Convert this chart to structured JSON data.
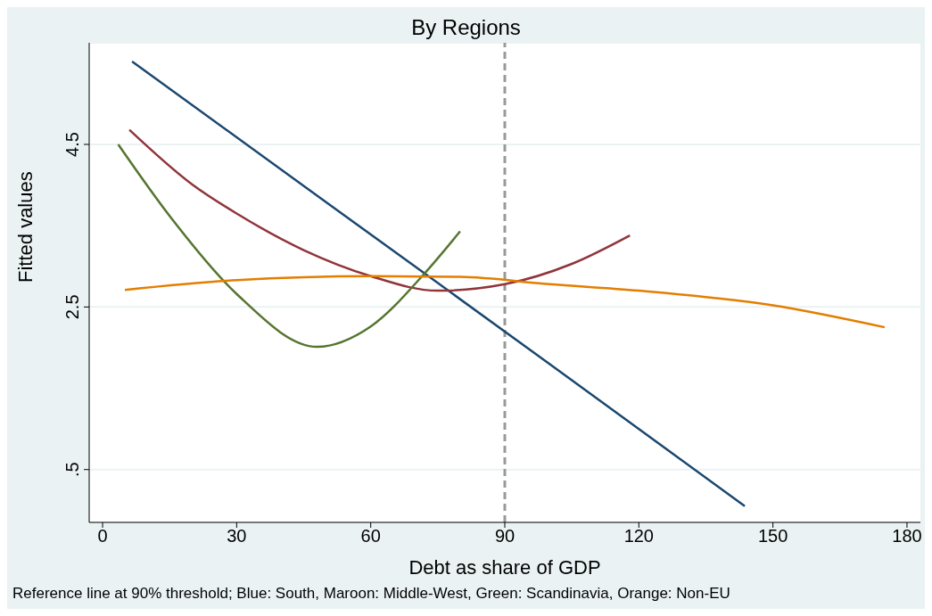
{
  "chart_data": {
    "type": "line",
    "title": "By Regions",
    "xlabel": "Debt as share of GDP",
    "ylabel": "Fitted values",
    "annotations": [
      "Reference line at 90% threshold; Blue: South, Maroon: Middle-West, Green: Scandinavia, Orange: Non-EU"
    ],
    "xlim": [
      -3,
      183
    ],
    "xticks": [
      0,
      30,
      60,
      90,
      120,
      150,
      180
    ],
    "ylim": [
      -0.15,
      5.75
    ],
    "yticks": [
      {
        "value": 0.5,
        "label": ".5"
      },
      2.5,
      4.5
    ],
    "grid": "y",
    "marker": "none",
    "line_style": "solid",
    "ref_lines": [
      {
        "axis": "x",
        "value": 90,
        "color": "#999999",
        "line_style": "dashed"
      }
    ],
    "series": [
      {
        "color": "#1a476f",
        "x": [
          6.6,
          50,
          100,
          143.7
        ],
        "values": [
          5.52,
          3.79,
          1.8,
          0.05
        ]
      },
      {
        "color": "#90353b",
        "x": [
          6,
          20,
          30,
          45,
          60,
          75,
          90,
          105,
          118
        ],
        "values": [
          4.68,
          4.01,
          3.65,
          3.2,
          2.88,
          2.7,
          2.78,
          3.03,
          3.38
        ]
      },
      {
        "color": "#55752f",
        "x": [
          3.5,
          15,
          30,
          48,
          60,
          72,
          80
        ],
        "values": [
          4.5,
          3.62,
          2.66,
          2.01,
          2.26,
          2.91,
          3.43
        ]
      },
      {
        "color": "#e37e00",
        "x": [
          5,
          30,
          60,
          80,
          100,
          120,
          150,
          175
        ],
        "values": [
          2.71,
          2.83,
          2.88,
          2.87,
          2.78,
          2.7,
          2.52,
          2.25
        ]
      }
    ]
  }
}
